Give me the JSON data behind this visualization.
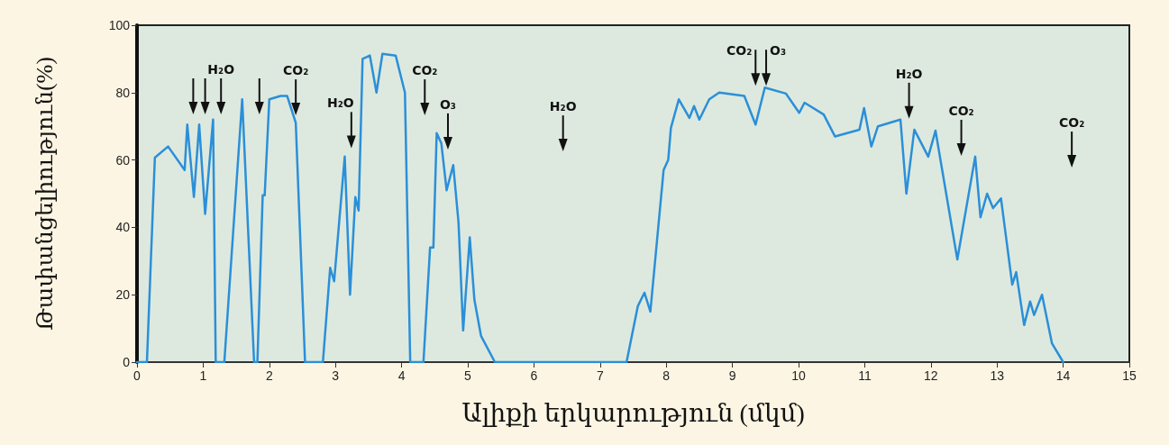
{
  "chart_data": {
    "type": "line",
    "xlabel": "Ալիքի երկարություն (մկմ)",
    "ylabel": "Թափանցելիություն(%)",
    "x": [
      0,
      0.15,
      0.27,
      0.47,
      0.72,
      0.76,
      0.86,
      0.94,
      1.03,
      1.15,
      1.19,
      1.32,
      1.59,
      1.77,
      1.82,
      1.9,
      1.93,
      2.0,
      2.17,
      2.27,
      2.4,
      2.54,
      2.81,
      2.92,
      2.98,
      3.14,
      3.22,
      3.3,
      3.35,
      3.41,
      3.52,
      3.62,
      3.71,
      3.91,
      4.05,
      4.13,
      4.33,
      4.43,
      4.48,
      4.53,
      4.6,
      4.68,
      4.78,
      4.86,
      4.93,
      5.03,
      5.1,
      5.2,
      5.41,
      7.4,
      7.57,
      7.67,
      7.76,
      7.96,
      8.03,
      8.07,
      8.19,
      8.35,
      8.42,
      8.5,
      8.65,
      8.8,
      9.18,
      9.35,
      9.49,
      9.81,
      10.01,
      10.09,
      10.38,
      10.55,
      10.92,
      10.99,
      11.1,
      11.2,
      11.54,
      11.63,
      11.75,
      11.96,
      12.07,
      12.4,
      12.67,
      12.75,
      12.85,
      12.94,
      13.06,
      13.23,
      13.29,
      13.41,
      13.5,
      13.56,
      13.68,
      13.83,
      14.0
    ],
    "series": [
      {
        "color": "#2b8fd8",
        "values": [
          0,
          0,
          60.7,
          64,
          57,
          70.5,
          49,
          70.5,
          44,
          72,
          0,
          0,
          78,
          0,
          0,
          49.5,
          49.5,
          78,
          79,
          79,
          71,
          0,
          0,
          28,
          24,
          61,
          20,
          49,
          45,
          90,
          91,
          80,
          91.5,
          91,
          80,
          0,
          0,
          34,
          34,
          68,
          65,
          51,
          58.5,
          41.5,
          9.4,
          37,
          18.5,
          7.8,
          0,
          0,
          16.6,
          20.6,
          15,
          57,
          60,
          69.5,
          78,
          72.5,
          76,
          72,
          78,
          80,
          79,
          70.5,
          81.5,
          79.7,
          74,
          77,
          73.5,
          67,
          69,
          75.4,
          64,
          70,
          72,
          50,
          69,
          61,
          68.7,
          30.5,
          61,
          43,
          50,
          45.7,
          48.6,
          23,
          26.7,
          11,
          18,
          14,
          20,
          5.6,
          0
        ]
      }
    ],
    "xlim": [
      0,
      15
    ],
    "xticks": [
      0,
      1,
      2,
      3,
      4,
      5,
      6,
      7,
      8,
      9,
      10,
      11,
      12,
      13,
      14,
      15
    ],
    "ylim": [
      0,
      100
    ],
    "yticks": [
      0,
      20,
      40,
      60,
      80,
      100
    ],
    "grid": false,
    "marker": "none",
    "line_style": "solid",
    "annotations": [
      "H₂O",
      "CO₂",
      "H₂O",
      "CO₂",
      "O₃",
      "H₂O",
      "CO₂",
      "O₃",
      "H₂O",
      "CO₂",
      "CO₂"
    ]
  }
}
